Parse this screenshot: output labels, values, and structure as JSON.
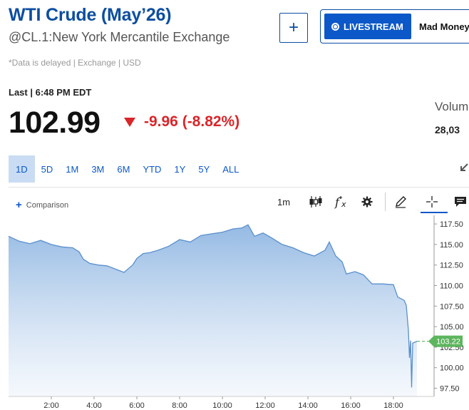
{
  "header": {
    "title": "WTI Crude (May’26)",
    "exchange": "@CL.1:New York Mercantile Exchange",
    "add_button": "+",
    "livestream_label": "LIVESTREAM",
    "show_name": "Mad Money"
  },
  "quote": {
    "delay_note": "*Data is delayed | Exchange | USD",
    "last_time": "Last | 6:48 PM EDT",
    "price": "102.99",
    "change": "-9.96 (-8.82%)",
    "volume_label": "Volum",
    "volume_value": "28,03"
  },
  "ranges": [
    {
      "label": "1D",
      "active": true
    },
    {
      "label": "5D",
      "active": false
    },
    {
      "label": "1M",
      "active": false
    },
    {
      "label": "3M",
      "active": false
    },
    {
      "label": "6M",
      "active": false
    },
    {
      "label": "YTD",
      "active": false
    },
    {
      "label": "1Y",
      "active": false
    },
    {
      "label": "5Y",
      "active": false
    },
    {
      "label": "ALL",
      "active": false
    }
  ],
  "toolbar": {
    "comparison_label": "Comparison",
    "interval_label": "1m",
    "icons": [
      "candlestick-icon",
      "function-icon",
      "settings-icon",
      "pencil-icon",
      "crosshair-icon",
      "comment-icon"
    ]
  },
  "colors": {
    "brand_blue": "#0c4ea0",
    "down_red": "#d9262a",
    "area_line": "#5a8fcc",
    "last_price_marker": "#5db55d"
  },
  "chart_data": {
    "type": "area",
    "x_ticks": [
      "2:00",
      "4:00",
      "6:00",
      "8:00",
      "10:00",
      "12:00",
      "14:00",
      "16:00",
      "18:00"
    ],
    "y_ticks": [
      "117.50",
      "115.00",
      "112.50",
      "110.00",
      "107.50",
      "105.00",
      "102.50",
      "100.00",
      "97.50"
    ],
    "ylim": [
      96.5,
      118.2
    ],
    "xlim": [
      0.0,
      19.9
    ],
    "current_value_label": "103.22",
    "current_value": 103.22,
    "series": [
      {
        "x": [
          0.0,
          0.5,
          1.0,
          1.5,
          2.0,
          2.5,
          3.0,
          3.3,
          3.5,
          3.8,
          4.2,
          4.6,
          5.0,
          5.4,
          5.8,
          6.0,
          6.3,
          6.6,
          7.0,
          7.5,
          8.0,
          8.5,
          9.0,
          9.5,
          10.0,
          10.5,
          10.9,
          11.2,
          11.5,
          11.9,
          12.3,
          12.8,
          13.3,
          13.8,
          14.3,
          14.8,
          15.0,
          15.3,
          15.6,
          15.8,
          16.2,
          16.6,
          17.0,
          17.5,
          18.0,
          18.2,
          18.5,
          18.6,
          18.7,
          18.75,
          18.8,
          18.85,
          18.9,
          19.0,
          19.1
        ],
        "y": [
          116.0,
          115.4,
          115.1,
          115.5,
          115.0,
          114.7,
          114.6,
          114.1,
          113.2,
          112.7,
          112.5,
          112.4,
          112.0,
          111.6,
          112.5,
          113.3,
          113.9,
          114.0,
          114.3,
          114.8,
          115.6,
          115.3,
          116.1,
          116.3,
          116.5,
          116.9,
          117.0,
          117.4,
          116.0,
          116.4,
          115.8,
          115.0,
          114.6,
          114.0,
          113.6,
          114.3,
          115.3,
          113.6,
          112.9,
          111.4,
          111.7,
          111.3,
          110.2,
          110.2,
          110.1,
          108.6,
          108.2,
          107.6,
          104.5,
          101.2,
          103.3,
          97.6,
          103.0,
          103.1,
          103.22
        ]
      }
    ]
  }
}
